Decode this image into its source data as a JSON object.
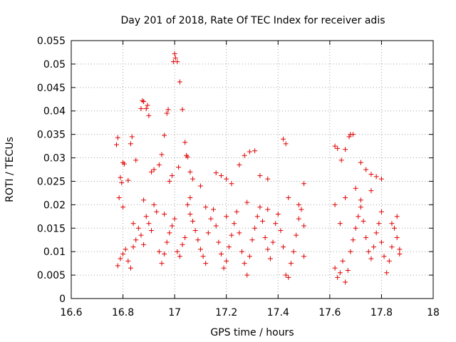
{
  "chart_data": {
    "type": "scatter",
    "title": "Day 201 of 2018, Rate Of TEC Index for receiver adis",
    "xlabel": "GPS time / hours",
    "ylabel": "ROTI / TECUs",
    "xlim": [
      16.6,
      18.0
    ],
    "ylim": [
      0,
      0.055
    ],
    "xticks": [
      "16.6",
      "16.8",
      "17",
      "17.2",
      "17.4",
      "17.6",
      "17.8",
      "18"
    ],
    "yticks": [
      "0",
      "0.005",
      "0.01",
      "0.015",
      "0.02",
      "0.025",
      "0.03",
      "0.035",
      "0.04",
      "0.045",
      "0.05",
      "0.055"
    ],
    "grid": true,
    "marker": "plus",
    "color": "#e00000",
    "series": [
      {
        "points": [
          [
            16.775,
            0.0328
          ],
          [
            16.78,
            0.0343
          ],
          [
            16.785,
            0.0215
          ],
          [
            16.79,
            0.0258
          ],
          [
            16.795,
            0.0247
          ],
          [
            16.8,
            0.029
          ],
          [
            16.805,
            0.0287
          ],
          [
            16.82,
            0.0252
          ],
          [
            16.83,
            0.033
          ],
          [
            16.835,
            0.0345
          ],
          [
            16.85,
            0.0295
          ],
          [
            16.87,
            0.0405
          ],
          [
            16.875,
            0.0422
          ],
          [
            16.88,
            0.042
          ],
          [
            16.89,
            0.0405
          ],
          [
            16.895,
            0.0412
          ],
          [
            16.9,
            0.039
          ],
          [
            16.91,
            0.027
          ],
          [
            16.92,
            0.0275
          ],
          [
            16.94,
            0.0285
          ],
          [
            16.95,
            0.0307
          ],
          [
            16.96,
            0.0348
          ],
          [
            16.97,
            0.0395
          ],
          [
            16.975,
            0.0403
          ],
          [
            16.98,
            0.025
          ],
          [
            16.99,
            0.0262
          ],
          [
            16.995,
            0.0505
          ],
          [
            17.0,
            0.0522
          ],
          [
            17.003,
            0.0513
          ],
          [
            17.01,
            0.0505
          ],
          [
            17.015,
            0.028
          ],
          [
            17.02,
            0.0462
          ],
          [
            17.03,
            0.0403
          ],
          [
            17.04,
            0.0333
          ],
          [
            17.045,
            0.0305
          ],
          [
            17.05,
            0.0302
          ],
          [
            17.06,
            0.027
          ],
          [
            17.07,
            0.0255
          ],
          [
            17.1,
            0.024
          ],
          [
            17.16,
            0.0268
          ],
          [
            17.18,
            0.0262
          ],
          [
            17.2,
            0.0255
          ],
          [
            17.22,
            0.0245
          ],
          [
            17.25,
            0.0285
          ],
          [
            17.27,
            0.0305
          ],
          [
            17.29,
            0.0313
          ],
          [
            17.31,
            0.0315
          ],
          [
            17.33,
            0.0262
          ],
          [
            17.36,
            0.0255
          ],
          [
            17.42,
            0.034
          ],
          [
            17.43,
            0.033
          ],
          [
            17.5,
            0.0245
          ],
          [
            16.78,
            0.007
          ],
          [
            16.79,
            0.0085
          ],
          [
            16.8,
            0.0095
          ],
          [
            16.81,
            0.0105
          ],
          [
            16.82,
            0.008
          ],
          [
            16.83,
            0.0065
          ],
          [
            16.84,
            0.011
          ],
          [
            16.85,
            0.0125
          ],
          [
            16.86,
            0.015
          ],
          [
            16.87,
            0.0135
          ],
          [
            16.88,
            0.0115
          ],
          [
            16.89,
            0.0175
          ],
          [
            16.9,
            0.016
          ],
          [
            16.91,
            0.0145
          ],
          [
            16.92,
            0.02
          ],
          [
            16.93,
            0.0185
          ],
          [
            16.94,
            0.01
          ],
          [
            16.95,
            0.0075
          ],
          [
            16.96,
            0.0095
          ],
          [
            16.97,
            0.012
          ],
          [
            16.98,
            0.014
          ],
          [
            16.99,
            0.0155
          ],
          [
            17.0,
            0.017
          ],
          [
            17.01,
            0.01
          ],
          [
            17.02,
            0.009
          ],
          [
            17.03,
            0.0115
          ],
          [
            17.04,
            0.013
          ],
          [
            17.05,
            0.02
          ],
          [
            17.06,
            0.018
          ],
          [
            17.07,
            0.0165
          ],
          [
            17.08,
            0.0145
          ],
          [
            17.09,
            0.0125
          ],
          [
            17.1,
            0.0105
          ],
          [
            17.11,
            0.009
          ],
          [
            17.12,
            0.0075
          ],
          [
            17.13,
            0.014
          ],
          [
            17.14,
            0.017
          ],
          [
            17.15,
            0.019
          ],
          [
            17.16,
            0.0155
          ],
          [
            17.17,
            0.012
          ],
          [
            17.18,
            0.0095
          ],
          [
            17.19,
            0.0065
          ],
          [
            17.2,
            0.008
          ],
          [
            17.21,
            0.011
          ],
          [
            17.22,
            0.0135
          ],
          [
            17.23,
            0.016
          ],
          [
            17.24,
            0.0185
          ],
          [
            17.25,
            0.014
          ],
          [
            17.26,
            0.01
          ],
          [
            17.27,
            0.0075
          ],
          [
            17.28,
            0.005
          ],
          [
            17.29,
            0.009
          ],
          [
            17.3,
            0.0125
          ],
          [
            17.31,
            0.015
          ],
          [
            17.32,
            0.0175
          ],
          [
            17.33,
            0.0195
          ],
          [
            17.34,
            0.0165
          ],
          [
            17.35,
            0.013
          ],
          [
            17.36,
            0.0105
          ],
          [
            17.37,
            0.0085
          ],
          [
            17.38,
            0.012
          ],
          [
            17.39,
            0.016
          ],
          [
            17.4,
            0.018
          ],
          [
            17.41,
            0.0145
          ],
          [
            17.42,
            0.011
          ],
          [
            17.43,
            0.005
          ],
          [
            17.44,
            0.0045
          ],
          [
            17.45,
            0.0075
          ],
          [
            17.46,
            0.01
          ],
          [
            17.47,
            0.0135
          ],
          [
            17.48,
            0.017
          ],
          [
            17.49,
            0.019
          ],
          [
            17.5,
            0.0155
          ],
          [
            17.5,
            0.009
          ],
          [
            16.8,
            0.0195
          ],
          [
            16.84,
            0.016
          ],
          [
            16.88,
            0.021
          ],
          [
            16.96,
            0.018
          ],
          [
            17.06,
            0.0215
          ],
          [
            17.12,
            0.0195
          ],
          [
            17.2,
            0.0175
          ],
          [
            17.28,
            0.0205
          ],
          [
            17.36,
            0.019
          ],
          [
            17.44,
            0.0215
          ],
          [
            17.48,
            0.02
          ],
          [
            17.62,
            0.0325
          ],
          [
            17.63,
            0.032
          ],
          [
            17.645,
            0.0295
          ],
          [
            17.66,
            0.0318
          ],
          [
            17.675,
            0.0345
          ],
          [
            17.68,
            0.035
          ],
          [
            17.69,
            0.035
          ],
          [
            17.72,
            0.029
          ],
          [
            17.74,
            0.0275
          ],
          [
            17.76,
            0.0265
          ],
          [
            17.78,
            0.026
          ],
          [
            17.8,
            0.0255
          ],
          [
            17.62,
            0.0065
          ],
          [
            17.63,
            0.0045
          ],
          [
            17.64,
            0.0055
          ],
          [
            17.65,
            0.008
          ],
          [
            17.66,
            0.0035
          ],
          [
            17.67,
            0.006
          ],
          [
            17.68,
            0.01
          ],
          [
            17.69,
            0.0125
          ],
          [
            17.7,
            0.015
          ],
          [
            17.71,
            0.0175
          ],
          [
            17.72,
            0.0195
          ],
          [
            17.73,
            0.0165
          ],
          [
            17.74,
            0.013
          ],
          [
            17.75,
            0.01
          ],
          [
            17.76,
            0.0085
          ],
          [
            17.77,
            0.011
          ],
          [
            17.78,
            0.014
          ],
          [
            17.79,
            0.016
          ],
          [
            17.8,
            0.012
          ],
          [
            17.81,
            0.009
          ],
          [
            17.82,
            0.0055
          ],
          [
            17.83,
            0.008
          ],
          [
            17.84,
            0.011
          ],
          [
            17.85,
            0.015
          ],
          [
            17.86,
            0.0175
          ],
          [
            17.87,
            0.0105
          ],
          [
            17.62,
            0.02
          ],
          [
            17.64,
            0.016
          ],
          [
            17.66,
            0.0215
          ],
          [
            17.7,
            0.0235
          ],
          [
            17.72,
            0.021
          ],
          [
            17.76,
            0.023
          ],
          [
            17.8,
            0.0185
          ],
          [
            17.84,
            0.016
          ],
          [
            17.86,
            0.013
          ],
          [
            17.87,
            0.0095
          ]
        ]
      }
    ]
  }
}
